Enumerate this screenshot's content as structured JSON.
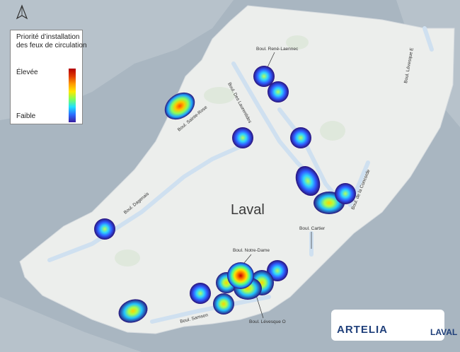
{
  "legend": {
    "title": "Priorité d’installation des feux de circulation",
    "high_label": "Élevée",
    "low_label": "Faible"
  },
  "city_label": "Laval",
  "road_labels": [
    {
      "id": "rene-laennec",
      "text": "Boul. René-Laennec"
    },
    {
      "id": "des-laurentides",
      "text": "Boul. Des Laurentides"
    },
    {
      "id": "sainte-rose",
      "text": "Boul. Sainte-Rose"
    },
    {
      "id": "levesque-e",
      "text": "Boul. Lévesque E"
    },
    {
      "id": "de-la-concorde",
      "text": "Boul. de la Concorde"
    },
    {
      "id": "dagenais",
      "text": "Boul. Dagenais"
    },
    {
      "id": "cartier",
      "text": "Boul. Cartier"
    },
    {
      "id": "notre-dame",
      "text": "Boul. Notre-Dame"
    },
    {
      "id": "samson",
      "text": "Boul. Samson"
    },
    {
      "id": "levesque-o",
      "text": "Boul. Lévesque O"
    }
  ],
  "hotspot_levels": {
    "rene-laennec-1": "low",
    "rene-laennec-2": "low",
    "sainte-rose": "high",
    "des-laurentides-1": "low",
    "des-laurentides-2": "low",
    "concorde-1": "low",
    "concorde-2": "medium",
    "concorde-3": "low",
    "dagenais": "low",
    "notre-dame-core": "very-high",
    "levesque-o": "medium",
    "samson-1": "low",
    "samson-2": "medium",
    "southwest": "medium"
  },
  "colors": {
    "water": "#a9b6c1",
    "land": "#eceeec",
    "river": "#cfe0f0",
    "heat_high": "#e0251b",
    "heat_low": "#3a1fa0"
  },
  "logos": {
    "artelia": "ARTELIA",
    "laval": "LAVAL"
  },
  "north_arrow": "north-arrow-icon"
}
